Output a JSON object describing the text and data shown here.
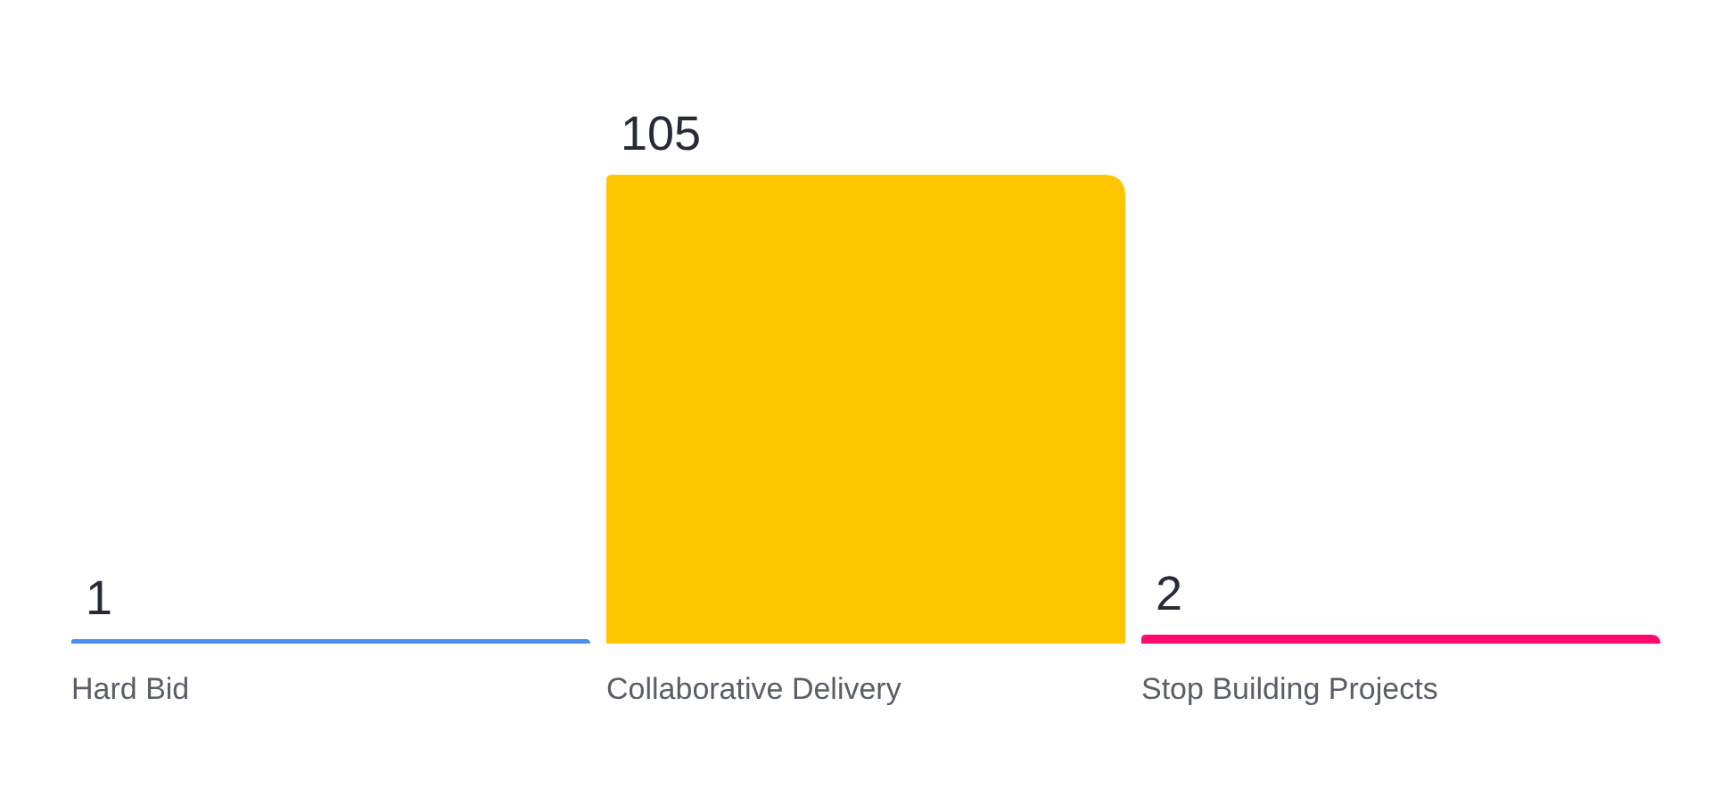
{
  "chart_data": {
    "type": "bar",
    "categories": [
      "Hard Bid",
      "Collaborative Delivery",
      "Stop Building Projects"
    ],
    "values": [
      1,
      105,
      2
    ],
    "colors": [
      "#4890ec",
      "#ffc500",
      "#ff0a6c"
    ],
    "data_labels": true
  }
}
